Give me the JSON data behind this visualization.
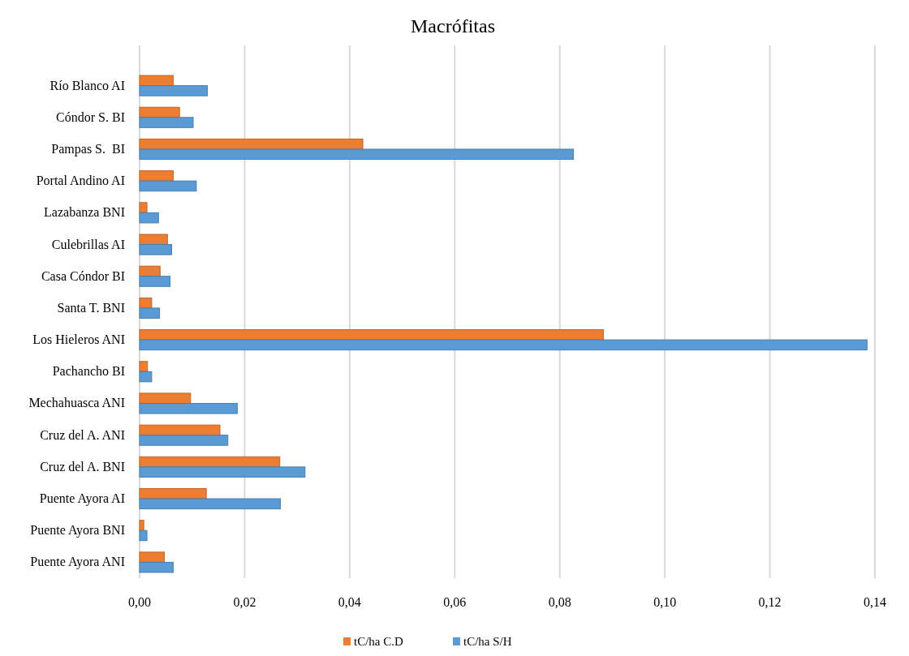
{
  "chart_data": {
    "type": "bar",
    "orientation": "horizontal",
    "title": "Macrófitas",
    "categories": [
      "Río Blanco AI",
      "Cóndor S. BI",
      "Pampas S.  BI",
      "Portal Andino AI",
      "Lazabanza BNI",
      "Culebrillas AI",
      "Casa Cóndor BI",
      "Santa T. BNI",
      "Los Hieleros ANI",
      "Pachancho BI",
      "Mechahuasca ANI",
      "Cruz del A. ANI",
      "Cruz del A. BNI",
      "Puente Ayora AI",
      "Puente Ayora BNI",
      "Puente Ayora ANI"
    ],
    "series": [
      {
        "name": "tC/ha C.D",
        "color": "#ed7d31",
        "values": [
          0.0064,
          0.0076,
          0.0425,
          0.0064,
          0.0014,
          0.0053,
          0.0039,
          0.0023,
          0.0883,
          0.0015,
          0.0097,
          0.0153,
          0.0267,
          0.0127,
          0.0008,
          0.0047
        ]
      },
      {
        "name": "tC/ha S/H",
        "color": "#5b9bd5",
        "values": [
          0.0129,
          0.0102,
          0.0826,
          0.0108,
          0.0036,
          0.0061,
          0.0058,
          0.0038,
          0.1385,
          0.0023,
          0.0186,
          0.0168,
          0.0315,
          0.0268,
          0.0014,
          0.0064
        ]
      }
    ],
    "xlim": [
      0,
      0.14
    ],
    "xticks": [
      {
        "value": 0,
        "label": "0,00"
      },
      {
        "value": 0.02,
        "label": "0,02"
      },
      {
        "value": 0.04,
        "label": "0,04"
      },
      {
        "value": 0.06,
        "label": "0,06"
      },
      {
        "value": 0.08,
        "label": "0,08"
      },
      {
        "value": 0.1,
        "label": "0,10"
      },
      {
        "value": 0.12,
        "label": "0,12"
      },
      {
        "value": 0.14,
        "label": "0,14"
      }
    ],
    "grid": "x",
    "legend": "bottom"
  }
}
